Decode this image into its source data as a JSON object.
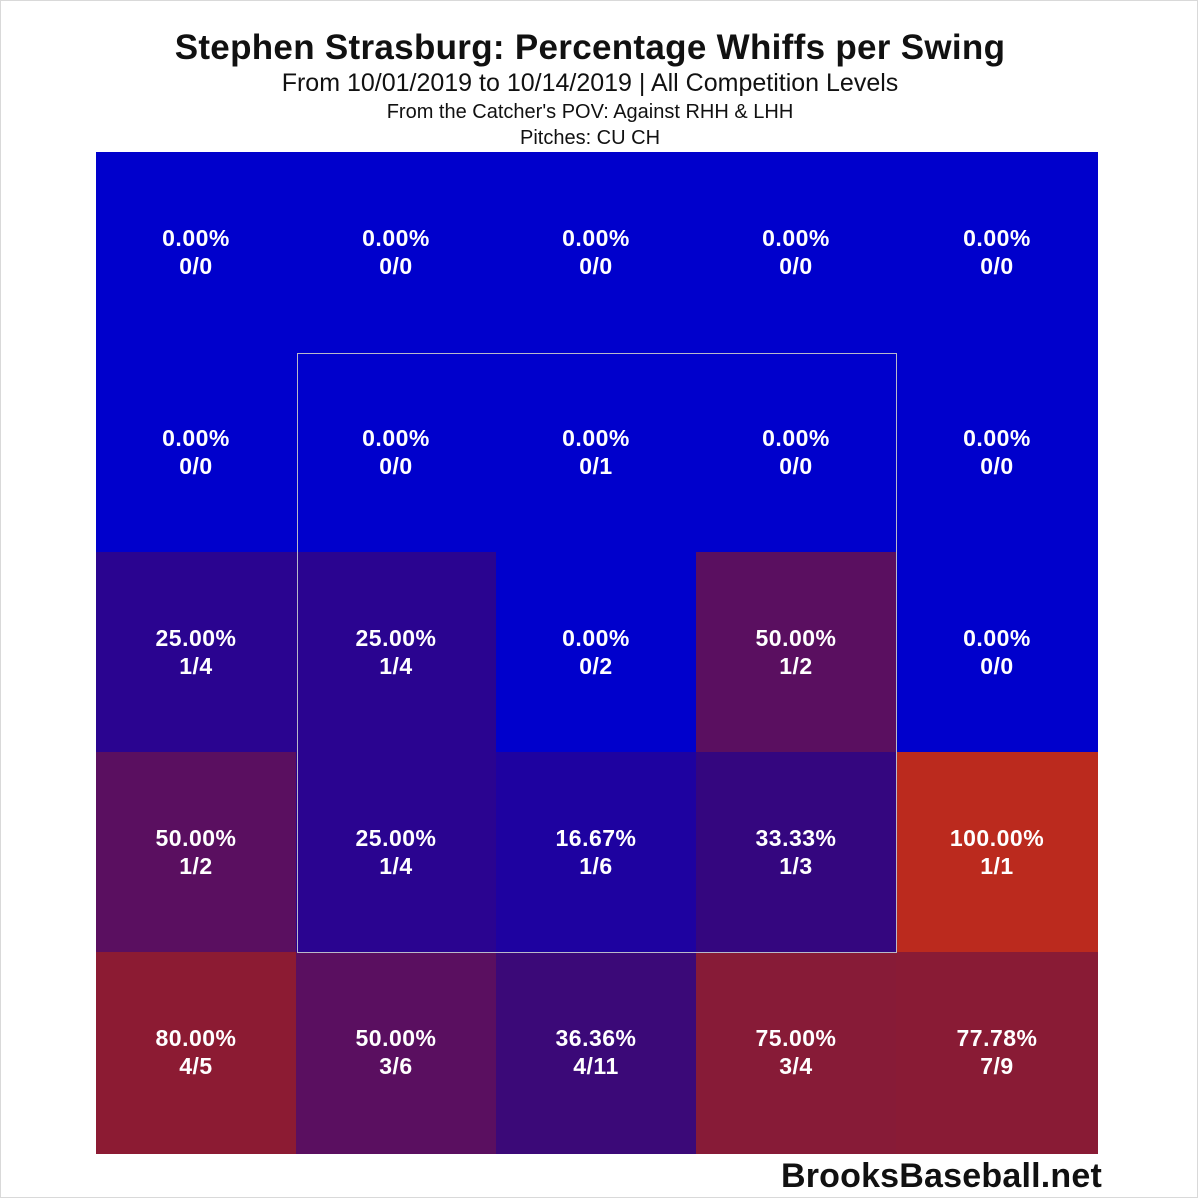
{
  "title": "Stephen Strasburg: Percentage Whiffs per Swing",
  "subtitle": "From 10/01/2019 to 10/14/2019 | All Competition Levels",
  "pov_line": "From the Catcher's POV:   Against RHH & LHH",
  "pitches_line": "Pitches:  CU  CH",
  "brand": "BrooksBaseball.net",
  "chart_data": {
    "type": "heatmap",
    "rows": 5,
    "cols": 5,
    "cells": [
      [
        {
          "pct": "0.00%",
          "frac": "0/0",
          "color": "#0000cc"
        },
        {
          "pct": "0.00%",
          "frac": "0/0",
          "color": "#0000cc"
        },
        {
          "pct": "0.00%",
          "frac": "0/0",
          "color": "#0000cc"
        },
        {
          "pct": "0.00%",
          "frac": "0/0",
          "color": "#0000cc"
        },
        {
          "pct": "0.00%",
          "frac": "0/0",
          "color": "#0000cc"
        }
      ],
      [
        {
          "pct": "0.00%",
          "frac": "0/0",
          "color": "#0000cc"
        },
        {
          "pct": "0.00%",
          "frac": "0/0",
          "color": "#0000cc"
        },
        {
          "pct": "0.00%",
          "frac": "0/1",
          "color": "#0000cc"
        },
        {
          "pct": "0.00%",
          "frac": "0/0",
          "color": "#0000cc"
        },
        {
          "pct": "0.00%",
          "frac": "0/0",
          "color": "#0000cc"
        }
      ],
      [
        {
          "pct": "25.00%",
          "frac": "1/4",
          "color": "#2a0490"
        },
        {
          "pct": "25.00%",
          "frac": "1/4",
          "color": "#2a0490"
        },
        {
          "pct": "0.00%",
          "frac": "0/2",
          "color": "#0000cc"
        },
        {
          "pct": "50.00%",
          "frac": "1/2",
          "color": "#5a0f60"
        },
        {
          "pct": "0.00%",
          "frac": "0/0",
          "color": "#0000cc"
        }
      ],
      [
        {
          "pct": "50.00%",
          "frac": "1/2",
          "color": "#5a0f60"
        },
        {
          "pct": "25.00%",
          "frac": "1/4",
          "color": "#2a0490"
        },
        {
          "pct": "16.67%",
          "frac": "1/6",
          "color": "#1e02a0"
        },
        {
          "pct": "33.33%",
          "frac": "1/3",
          "color": "#34067f"
        },
        {
          "pct": "100.00%",
          "frac": "1/1",
          "color": "#bb2a1e"
        }
      ],
      [
        {
          "pct": "80.00%",
          "frac": "4/5",
          "color": "#8c1b33"
        },
        {
          "pct": "50.00%",
          "frac": "3/6",
          "color": "#5a0f60"
        },
        {
          "pct": "36.36%",
          "frac": "4/11",
          "color": "#3b0978"
        },
        {
          "pct": "75.00%",
          "frac": "3/4",
          "color": "#871b37"
        },
        {
          "pct": "77.78%",
          "frac": "7/9",
          "color": "#891b35"
        }
      ]
    ]
  }
}
